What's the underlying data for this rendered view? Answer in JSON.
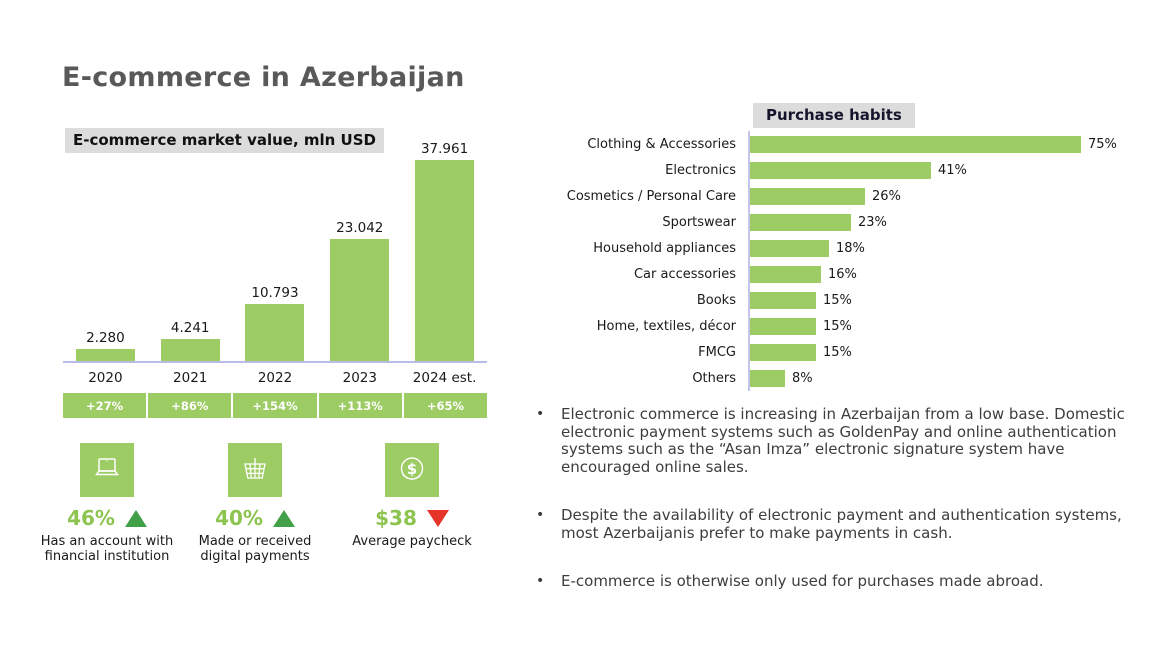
{
  "page_title": "E-commerce in Azerbaijan",
  "colors": {
    "bar_green": "#9dcb64",
    "stat_value_green": "#8cc44f",
    "trend_up_green": "#42a049",
    "trend_down_red": "#e6342a",
    "title_gray": "#595959",
    "label_bg_gray": "#dcdcdc",
    "axis_lavender": "#b9bce5"
  },
  "chart_data": [
    {
      "type": "bar",
      "title": "E-commerce market value, mln USD",
      "categories": [
        "2020",
        "2021",
        "2022",
        "2023",
        "2024 est."
      ],
      "values": [
        2.28,
        4.241,
        10.793,
        23.042,
        37.961
      ],
      "value_labels": [
        "2.280",
        "4.241",
        "10.793",
        "23.042",
        "37.961"
      ],
      "growth_labels": [
        "+27%",
        "+86%",
        "+154%",
        "+113%",
        "+65%"
      ],
      "xlabel": "",
      "ylabel": "mln USD",
      "ylim": [
        0,
        40
      ],
      "grid": false,
      "legend": "none"
    },
    {
      "type": "bar",
      "orientation": "horizontal",
      "title": "Purchase habits",
      "categories": [
        "Clothing & Accessories",
        "Electronics",
        "Cosmetics / Personal Care",
        "Sportswear",
        "Household appliances",
        "Car accessories",
        "Books",
        "Home, textiles, décor",
        "FMCG",
        "Others"
      ],
      "values": [
        75,
        41,
        26,
        23,
        18,
        16,
        15,
        15,
        15,
        8
      ],
      "value_labels": [
        "75%",
        "41%",
        "26%",
        "23%",
        "18%",
        "16%",
        "15%",
        "15%",
        "15%",
        "8%"
      ],
      "xlabel": "",
      "ylabel": "",
      "xlim": [
        0,
        100
      ],
      "grid": false,
      "legend": "none"
    }
  ],
  "stats": [
    {
      "icon": "laptop-icon",
      "value": "46%",
      "trend": "up",
      "label": "Has an account with financial institution"
    },
    {
      "icon": "shopping-basket-icon",
      "value": "40%",
      "trend": "up",
      "label": "Made or received digital payments"
    },
    {
      "icon": "dollar-coin-icon",
      "value": "$38",
      "trend": "down",
      "label": "Average paycheck"
    }
  ],
  "bullets": [
    "Electronic commerce is increasing in Azerbaijan from a low base. Domestic electronic payment systems such as GoldenPay and online authentication systems such as the “Asan Imza” electronic signature system have encouraged online sales.",
    "Despite the availability of electronic payment and authentication systems, most Azerbaijanis prefer to make payments in cash.",
    "E-commerce is otherwise only used for purchases made abroad."
  ]
}
